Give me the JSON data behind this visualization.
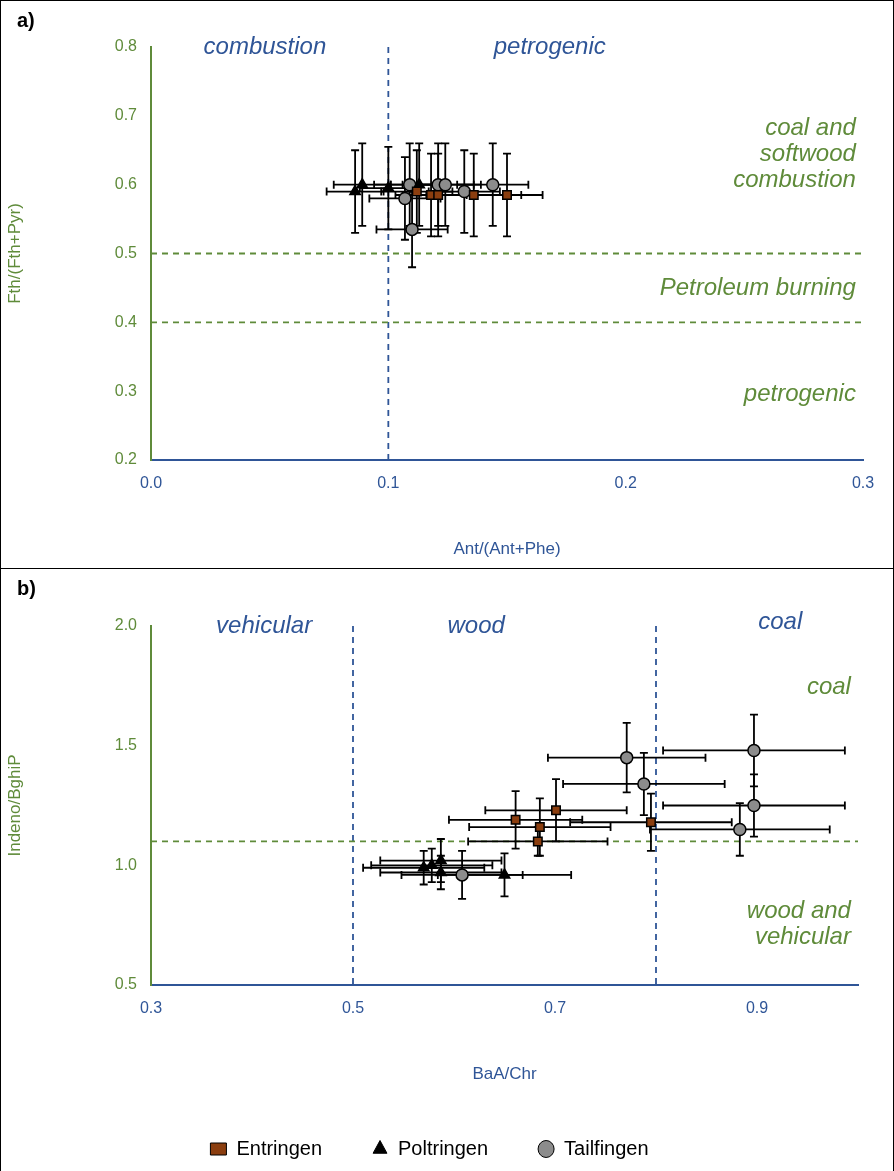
{
  "chart_data": [
    {
      "type": "scatter",
      "title": "a)",
      "xlabel": "Ant/(Ant+Phe)",
      "ylabel": "Fth/(Fth+Pyr)",
      "xlim": [
        0,
        0.3
      ],
      "xticks": [
        {
          "value": 0,
          "label": "0.0"
        },
        0.1,
        0.2,
        0.3
      ],
      "ylim": [
        0.2,
        0.8
      ],
      "yticks": [
        0.2,
        0.3,
        0.4,
        0.5,
        0.6,
        0.7,
        0.8
      ],
      "grid": false,
      "legend": false,
      "series": [
        {
          "color": "#8b3e0f",
          "marker": "square",
          "x": [
            0.112,
            0.118,
            0.121,
            0.136,
            0.15
          ],
          "values": [
            0.59,
            0.585,
            0.585,
            0.585,
            0.585
          ],
          "errors": [
            0.06,
            0.06,
            0.06,
            0.06,
            0.06
          ],
          "xerrors": [
            0.015,
            0.015,
            0.015,
            0.02,
            0.015
          ]
        },
        {
          "color": "#000000",
          "marker": "triangle",
          "x": [
            0.086,
            0.089,
            0.1,
            0.113
          ],
          "values": [
            0.59,
            0.6,
            0.595,
            0.6
          ],
          "errors": [
            0.06,
            0.06,
            0.06,
            0.06
          ],
          "xerrors": [
            0.012,
            0.012,
            0.012,
            0.012
          ]
        },
        {
          "color": "#8c8c8c",
          "marker": "circle",
          "x": [
            0.109,
            0.107,
            0.11,
            0.121,
            0.124,
            0.132,
            0.144
          ],
          "values": [
            0.6,
            0.58,
            0.535,
            0.6,
            0.6,
            0.59,
            0.6
          ],
          "errors": [
            0.06,
            0.06,
            0.055,
            0.06,
            0.06,
            0.06,
            0.06
          ],
          "xerrors": [
            0.015,
            0.015,
            0.015,
            0.015,
            0.015,
            0.015,
            0.015
          ]
        }
      ],
      "ref_lines": [
        {
          "axis": "x",
          "value": 0.1,
          "color": "#2f5597",
          "line_style": "dashed"
        },
        {
          "axis": "y",
          "value": 0.5,
          "color": "#5f8b3a",
          "line_style": "dashed"
        },
        {
          "axis": "y",
          "value": 0.4,
          "color": "#5f8b3a",
          "line_style": "dashed"
        }
      ],
      "annotations": [
        "combustion",
        "petrogenic",
        "coal and\nsoftwood\ncombustion",
        "Petroleum burning",
        "petrogenic"
      ]
    },
    {
      "type": "scatter",
      "title": "b)",
      "xlabel": "BaA/Chr",
      "ylabel": "Indeno/BghiP",
      "xlim": [
        0.3,
        1.0
      ],
      "xticks": [
        0.3,
        0.5,
        0.7,
        0.9
      ],
      "ylim": [
        0.5,
        2.0
      ],
      "yticks": [
        0.5,
        {
          "value": 1,
          "label": "1.0"
        },
        1.5,
        {
          "value": 2,
          "label": "2.0"
        }
      ],
      "grid": false,
      "legend": "bottom",
      "series": [
        {
          "name": "Entringen",
          "color": "#8b3e0f",
          "marker": "square",
          "x": [
            0.661,
            0.685,
            0.683,
            0.701,
            0.795
          ],
          "values": [
            1.19,
            1.16,
            1.1,
            1.23,
            1.18
          ],
          "errors": [
            0.12,
            0.12,
            0.06,
            0.13,
            0.12
          ],
          "xerrors": [
            0.066,
            0.07,
            0.069,
            0.07,
            0.08
          ]
        },
        {
          "name": "Poltringen",
          "color": "#000000",
          "marker": "triangle",
          "x": [
            0.57,
            0.578,
            0.587,
            0.587,
            0.65
          ],
          "values": [
            0.99,
            1.0,
            1.02,
            0.97,
            0.96
          ],
          "errors": [
            0.07,
            0.07,
            0.09,
            0.07,
            0.09
          ],
          "xerrors": [
            0.06,
            0.06,
            0.06,
            0.06,
            0.066
          ]
        },
        {
          "name": "Tailfingen",
          "color": "#8c8c8c",
          "marker": "circle",
          "x": [
            0.608,
            0.771,
            0.788,
            0.897,
            0.897,
            0.883
          ],
          "values": [
            0.96,
            1.45,
            1.34,
            1.48,
            1.25,
            1.15
          ],
          "errors": [
            0.1,
            0.145,
            0.13,
            0.15,
            0.13,
            0.11
          ],
          "xerrors": [
            0.06,
            0.078,
            0.08,
            0.09,
            0.09,
            0.089
          ]
        }
      ],
      "ref_lines": [
        {
          "axis": "x",
          "value": 0.5,
          "color": "#2f5597",
          "line_style": "dashed"
        },
        {
          "axis": "x",
          "value": 0.8,
          "color": "#2f5597",
          "line_style": "dashed"
        },
        {
          "axis": "y",
          "value": 1.1,
          "color": "#5f8b3a",
          "line_style": "dashed"
        }
      ],
      "annotations": [
        "vehicular",
        "wood",
        "coal",
        "coal",
        "wood and\nvehicular"
      ]
    }
  ]
}
